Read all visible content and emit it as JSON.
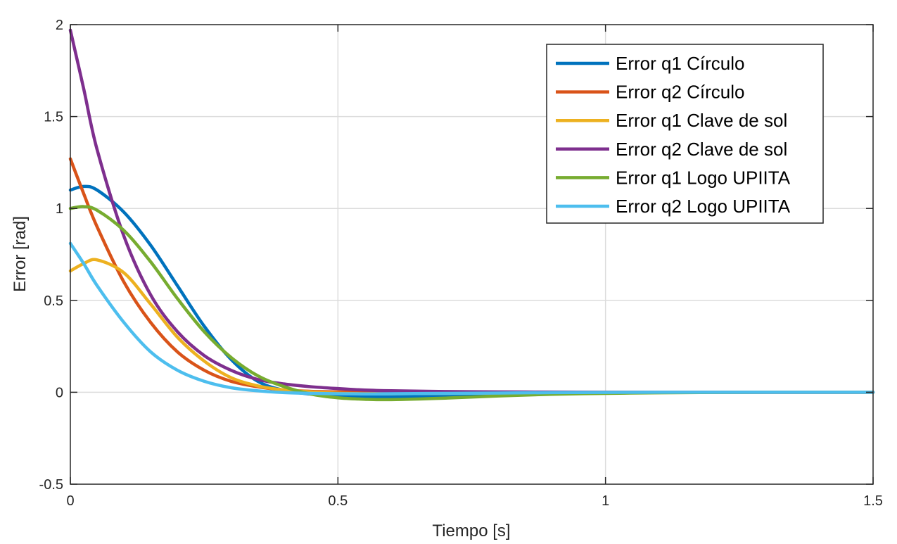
{
  "chart_data": {
    "type": "line",
    "title": "",
    "xlabel": "Tiempo [s]",
    "ylabel": "Error [rad]",
    "xlim": [
      0,
      1.5
    ],
    "ylim": [
      -0.5,
      2
    ],
    "xticks": [
      0,
      0.5,
      1,
      1.5
    ],
    "xtick_labels": [
      "0",
      "0.5",
      "1",
      "1.5"
    ],
    "yticks": [
      -0.5,
      0,
      0.5,
      1,
      1.5,
      2
    ],
    "ytick_labels": [
      "-0.5",
      "0",
      "0.5",
      "1",
      "1.5",
      "2"
    ],
    "grid": true,
    "legend_position": "top-right",
    "x": [
      0,
      0.025,
      0.05,
      0.1,
      0.15,
      0.2,
      0.25,
      0.3,
      0.35,
      0.4,
      0.45,
      0.5,
      0.55,
      0.6,
      0.7,
      0.8,
      0.9,
      1.0,
      1.1,
      1.2,
      1.3,
      1.4,
      1.5
    ],
    "series": [
      {
        "name": "Error q1 Círculo",
        "color": "#0072BD",
        "values": [
          1.1,
          1.12,
          1.1,
          0.98,
          0.8,
          0.58,
          0.36,
          0.18,
          0.06,
          0.01,
          -0.01,
          -0.02,
          -0.025,
          -0.025,
          -0.02,
          -0.012,
          -0.006,
          -0.003,
          -0.001,
          0,
          0,
          0,
          0
        ]
      },
      {
        "name": "Error q2 Círculo",
        "color": "#D95319",
        "values": [
          1.27,
          1.08,
          0.9,
          0.6,
          0.38,
          0.22,
          0.12,
          0.06,
          0.03,
          0.012,
          0.005,
          0.002,
          0.001,
          0,
          0,
          0,
          0,
          0,
          0,
          0,
          0,
          0,
          0
        ]
      },
      {
        "name": "Error q1 Clave de sol",
        "color": "#EDB120",
        "values": [
          0.66,
          0.7,
          0.72,
          0.65,
          0.48,
          0.3,
          0.17,
          0.08,
          0.035,
          0.012,
          0.002,
          -0.005,
          -0.008,
          -0.008,
          -0.006,
          -0.004,
          -0.002,
          -0.001,
          0,
          0,
          0,
          0,
          0
        ]
      },
      {
        "name": "Error q2 Clave de sol",
        "color": "#7E2F8E",
        "values": [
          1.97,
          1.65,
          1.32,
          0.85,
          0.53,
          0.33,
          0.2,
          0.12,
          0.07,
          0.045,
          0.03,
          0.02,
          0.012,
          0.008,
          0.004,
          0.002,
          0.001,
          0,
          0,
          0,
          0,
          0,
          0
        ]
      },
      {
        "name": "Error q1 Logo UPIITA",
        "color": "#77AC30",
        "values": [
          1.0,
          1.01,
          0.99,
          0.88,
          0.71,
          0.51,
          0.33,
          0.19,
          0.09,
          0.03,
          -0.01,
          -0.03,
          -0.038,
          -0.04,
          -0.032,
          -0.02,
          -0.011,
          -0.006,
          -0.003,
          -0.001,
          0,
          0,
          0
        ]
      },
      {
        "name": "Error q2 Logo UPIITA",
        "color": "#4DBEEE",
        "values": [
          0.81,
          0.7,
          0.58,
          0.38,
          0.22,
          0.12,
          0.06,
          0.025,
          0.008,
          -0.002,
          -0.006,
          -0.008,
          -0.009,
          -0.008,
          -0.006,
          -0.004,
          -0.002,
          -0.001,
          0,
          0,
          0,
          0,
          0
        ]
      }
    ]
  }
}
